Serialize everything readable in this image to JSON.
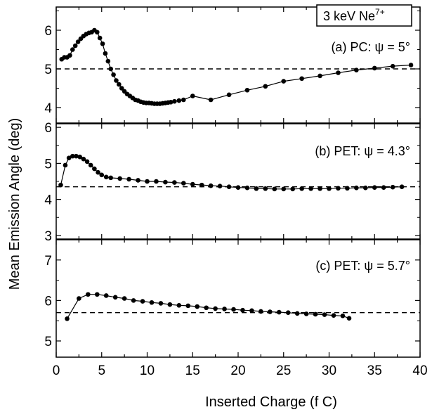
{
  "figure": {
    "ylabel": "Mean Emission Angle (deg)",
    "xlabel": "Inserted Charge (f C)",
    "x_ticks": [
      "0",
      "5",
      "10",
      "15",
      "20",
      "25",
      "30",
      "35",
      "40"
    ],
    "legend_box": {
      "prefix": "3 keV Ne",
      "superscript": "7+"
    }
  },
  "chart_data": [
    {
      "type": "scatter",
      "panel": "a",
      "annotation": "(a)  PC:  ψ = 5°",
      "xlim": [
        0,
        40
      ],
      "ylim": [
        3.6,
        6.6
      ],
      "yticks": [
        4,
        5,
        6
      ],
      "reference_line": 5,
      "series": [
        {
          "x": [
            0.6,
            0.9,
            1.2,
            1.5,
            1.8,
            2.1,
            2.4,
            2.7,
            3.0,
            3.3,
            3.6,
            3.9,
            4.2,
            4.5,
            4.8,
            5.1,
            5.4,
            5.7,
            6.0,
            6.3,
            6.6,
            6.9,
            7.2,
            7.5,
            7.8,
            8.1,
            8.4,
            8.7,
            9.0,
            9.3,
            9.6,
            9.9,
            10.2,
            10.5,
            10.8,
            11.1,
            11.4,
            11.7,
            12.0,
            12.3,
            12.6,
            13.0,
            13.5,
            14.0,
            15.0,
            17.0,
            19.0,
            21.0,
            23.0,
            25.0,
            27.0,
            29.0,
            31.0,
            33.0,
            35.0,
            37.0,
            39.0
          ],
          "y": [
            5.25,
            5.3,
            5.3,
            5.35,
            5.5,
            5.6,
            5.7,
            5.78,
            5.85,
            5.9,
            5.93,
            5.95,
            6.0,
            5.95,
            5.8,
            5.65,
            5.4,
            5.2,
            5.0,
            4.85,
            4.7,
            4.6,
            4.5,
            4.42,
            4.35,
            4.3,
            4.25,
            4.2,
            4.18,
            4.15,
            4.13,
            4.12,
            4.12,
            4.11,
            4.1,
            4.1,
            4.1,
            4.11,
            4.12,
            4.13,
            4.14,
            4.16,
            4.18,
            4.2,
            4.3,
            4.2,
            4.33,
            4.45,
            4.55,
            4.68,
            4.75,
            4.82,
            4.9,
            4.97,
            5.02,
            5.07,
            5.1
          ]
        }
      ]
    },
    {
      "type": "scatter",
      "panel": "b",
      "annotation": "(b)  PET:  ψ = 4.3°",
      "xlim": [
        0,
        40
      ],
      "ylim": [
        2.9,
        6.1
      ],
      "yticks": [
        3,
        4,
        5,
        6
      ],
      "reference_line": 4.35,
      "series": [
        {
          "x": [
            0.5,
            1.0,
            1.4,
            1.8,
            2.2,
            2.6,
            3.0,
            3.4,
            3.8,
            4.2,
            4.6,
            5.0,
            5.5,
            6.0,
            7.0,
            8.0,
            9.0,
            10.0,
            11.0,
            12.0,
            13.0,
            14.0,
            15.0,
            16.0,
            17.0,
            18.0,
            19.0,
            20.0,
            21.0,
            22.0,
            23.0,
            24.0,
            25.0,
            26.0,
            27.0,
            28.0,
            29.0,
            30.0,
            31.0,
            32.0,
            33.0,
            34.0,
            35.0,
            36.0,
            37.0,
            38.0
          ],
          "y": [
            4.4,
            4.95,
            5.15,
            5.2,
            5.2,
            5.18,
            5.12,
            5.05,
            4.95,
            4.85,
            4.75,
            4.68,
            4.62,
            4.6,
            4.58,
            4.56,
            4.53,
            4.5,
            4.5,
            4.48,
            4.47,
            4.45,
            4.42,
            4.4,
            4.38,
            4.37,
            4.35,
            4.33,
            4.32,
            4.3,
            4.3,
            4.29,
            4.29,
            4.29,
            4.3,
            4.3,
            4.3,
            4.3,
            4.31,
            4.31,
            4.32,
            4.32,
            4.33,
            4.33,
            4.34,
            4.35
          ]
        }
      ]
    },
    {
      "type": "scatter",
      "panel": "c",
      "annotation": "(c)  PET:  ψ = 5.7°",
      "xlim": [
        0,
        40
      ],
      "ylim": [
        4.6,
        7.5
      ],
      "yticks": [
        5,
        6,
        7
      ],
      "reference_line": 5.7,
      "series": [
        {
          "x": [
            1.2,
            2.5,
            3.5,
            4.5,
            5.5,
            6.5,
            7.5,
            8.5,
            9.5,
            10.5,
            11.5,
            12.5,
            13.5,
            14.5,
            15.5,
            16.5,
            17.5,
            18.5,
            19.5,
            20.5,
            21.5,
            22.5,
            23.5,
            24.5,
            25.5,
            26.5,
            27.5,
            28.5,
            29.5,
            30.5,
            31.5,
            32.2
          ],
          "y": [
            5.55,
            6.05,
            6.15,
            6.15,
            6.12,
            6.08,
            6.05,
            6.0,
            5.98,
            5.95,
            5.93,
            5.9,
            5.88,
            5.87,
            5.85,
            5.82,
            5.8,
            5.79,
            5.78,
            5.76,
            5.75,
            5.73,
            5.72,
            5.71,
            5.7,
            5.68,
            5.67,
            5.66,
            5.65,
            5.63,
            5.62,
            5.56
          ]
        }
      ]
    }
  ]
}
